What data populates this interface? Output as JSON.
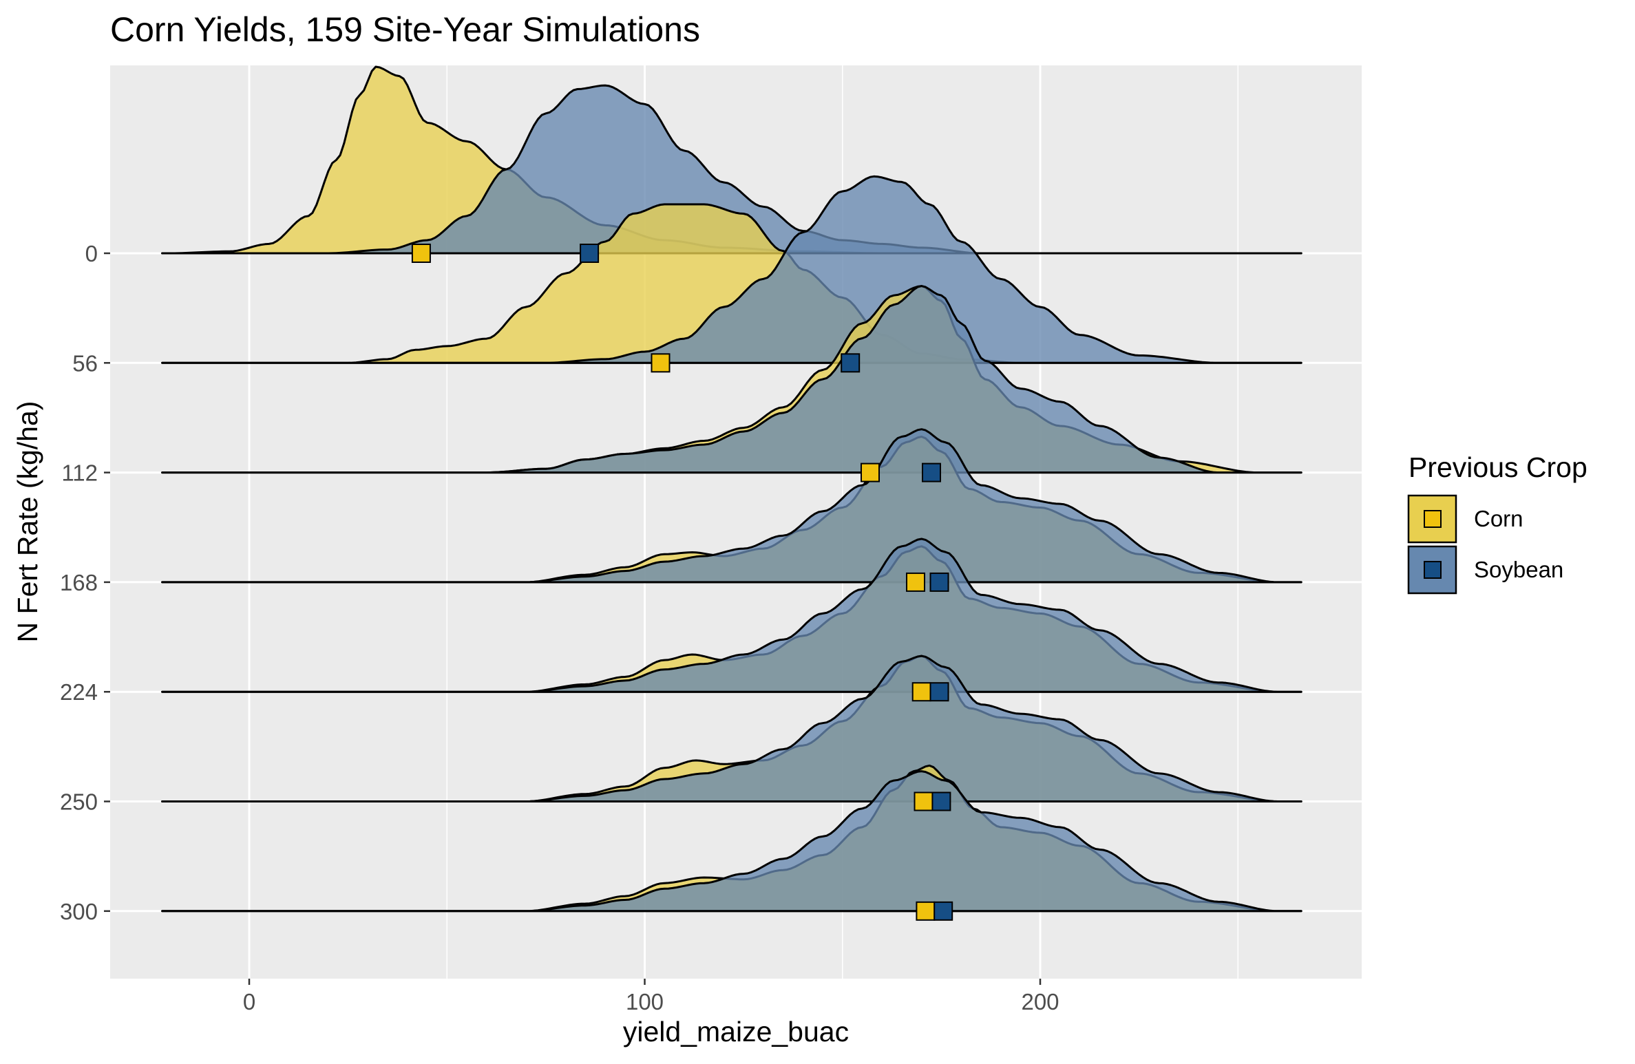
{
  "chart_data": {
    "type": "ridgeline",
    "title": "Corn Yields, 159 Site-Year Simulations",
    "xlabel": "yield_maize_buac",
    "ylabel": "N Fert Rate (kg/ha)",
    "xlim": [
      -35,
      280
    ],
    "x_ticks": [
      0,
      100,
      200
    ],
    "x_tick_labels": [
      "0",
      "100",
      "200"
    ],
    "categories": [
      "0",
      "56",
      "112",
      "168",
      "224",
      "250",
      "300"
    ],
    "legend": {
      "title": "Previous Crop",
      "placement": "right",
      "entries": [
        "Corn",
        "Soybean"
      ]
    },
    "grid": true,
    "series": [
      {
        "name": "Corn",
        "fill": "#e8cf4f",
        "marker": "#f0c20e",
        "medians": [
          43.5,
          104,
          157,
          168.5,
          170,
          170.5,
          171
        ],
        "densities": [
          [
            [
              -20,
              0
            ],
            [
              -5,
              0.01
            ],
            [
              5,
              0.05
            ],
            [
              15,
              0.2
            ],
            [
              22,
              0.5
            ],
            [
              28,
              0.85
            ],
            [
              32,
              1
            ],
            [
              38,
              0.95
            ],
            [
              45,
              0.7
            ],
            [
              55,
              0.6
            ],
            [
              65,
              0.45
            ],
            [
              75,
              0.3
            ],
            [
              90,
              0.15
            ],
            [
              105,
              0.07
            ],
            [
              120,
              0.03
            ],
            [
              140,
              0.01
            ],
            [
              160,
              0
            ]
          ],
          [
            [
              25,
              0
            ],
            [
              35,
              0.02
            ],
            [
              42,
              0.07
            ],
            [
              50,
              0.09
            ],
            [
              60,
              0.13
            ],
            [
              70,
              0.3
            ],
            [
              80,
              0.48
            ],
            [
              90,
              0.65
            ],
            [
              97,
              0.8
            ],
            [
              105,
              0.85
            ],
            [
              115,
              0.85
            ],
            [
              125,
              0.8
            ],
            [
              135,
              0.6
            ],
            [
              140,
              0.5
            ],
            [
              150,
              0.35
            ],
            [
              160,
              0.15
            ],
            [
              170,
              0.05
            ],
            [
              180,
              0.02
            ],
            [
              195,
              0
            ]
          ],
          [
            [
              60,
              0
            ],
            [
              75,
              0.02
            ],
            [
              85,
              0.07
            ],
            [
              95,
              0.1
            ],
            [
              105,
              0.13
            ],
            [
              115,
              0.17
            ],
            [
              125,
              0.24
            ],
            [
              135,
              0.35
            ],
            [
              145,
              0.55
            ],
            [
              155,
              0.8
            ],
            [
              163,
              0.95
            ],
            [
              170,
              1
            ],
            [
              175,
              0.92
            ],
            [
              180,
              0.72
            ],
            [
              186,
              0.5
            ],
            [
              195,
              0.35
            ],
            [
              205,
              0.25
            ],
            [
              220,
              0.15
            ],
            [
              235,
              0.06
            ],
            [
              255,
              0
            ]
          ],
          [
            [
              70,
              0
            ],
            [
              85,
              0.04
            ],
            [
              95,
              0.08
            ],
            [
              105,
              0.15
            ],
            [
              112,
              0.16
            ],
            [
              120,
              0.14
            ],
            [
              130,
              0.18
            ],
            [
              140,
              0.28
            ],
            [
              150,
              0.4
            ],
            [
              160,
              0.62
            ],
            [
              166,
              0.75
            ],
            [
              170,
              0.78
            ],
            [
              175,
              0.7
            ],
            [
              182,
              0.5
            ],
            [
              190,
              0.43
            ],
            [
              200,
              0.4
            ],
            [
              210,
              0.33
            ],
            [
              225,
              0.15
            ],
            [
              240,
              0.05
            ],
            [
              260,
              0
            ]
          ],
          [
            [
              70,
              0
            ],
            [
              85,
              0.04
            ],
            [
              95,
              0.08
            ],
            [
              105,
              0.17
            ],
            [
              112,
              0.2
            ],
            [
              120,
              0.17
            ],
            [
              130,
              0.2
            ],
            [
              140,
              0.3
            ],
            [
              150,
              0.42
            ],
            [
              160,
              0.62
            ],
            [
              166,
              0.75
            ],
            [
              170,
              0.78
            ],
            [
              175,
              0.7
            ],
            [
              182,
              0.5
            ],
            [
              190,
              0.45
            ],
            [
              200,
              0.42
            ],
            [
              210,
              0.35
            ],
            [
              225,
              0.15
            ],
            [
              240,
              0.05
            ],
            [
              260,
              0
            ]
          ],
          [
            [
              70,
              0
            ],
            [
              85,
              0.04
            ],
            [
              95,
              0.08
            ],
            [
              105,
              0.18
            ],
            [
              113,
              0.22
            ],
            [
              120,
              0.2
            ],
            [
              130,
              0.22
            ],
            [
              140,
              0.3
            ],
            [
              150,
              0.43
            ],
            [
              160,
              0.62
            ],
            [
              166,
              0.75
            ],
            [
              170,
              0.78
            ],
            [
              175,
              0.7
            ],
            [
              182,
              0.5
            ],
            [
              190,
              0.45
            ],
            [
              200,
              0.42
            ],
            [
              210,
              0.35
            ],
            [
              225,
              0.15
            ],
            [
              240,
              0.05
            ],
            [
              260,
              0
            ]
          ],
          [
            [
              70,
              0
            ],
            [
              85,
              0.04
            ],
            [
              95,
              0.08
            ],
            [
              105,
              0.15
            ],
            [
              115,
              0.18
            ],
            [
              125,
              0.17
            ],
            [
              135,
              0.22
            ],
            [
              145,
              0.3
            ],
            [
              155,
              0.45
            ],
            [
              163,
              0.65
            ],
            [
              168,
              0.75
            ],
            [
              172,
              0.78
            ],
            [
              177,
              0.7
            ],
            [
              183,
              0.55
            ],
            [
              190,
              0.45
            ],
            [
              200,
              0.42
            ],
            [
              210,
              0.35
            ],
            [
              225,
              0.15
            ],
            [
              240,
              0.05
            ],
            [
              260,
              0
            ]
          ]
        ]
      },
      {
        "name": "Soybean",
        "fill": "#6688af",
        "marker": "#164e85",
        "medians": [
          86,
          152,
          172.5,
          174.5,
          174.5,
          175,
          175.5
        ],
        "densities": [
          [
            [
              20,
              0
            ],
            [
              35,
              0.02
            ],
            [
              45,
              0.07
            ],
            [
              55,
              0.2
            ],
            [
              65,
              0.45
            ],
            [
              75,
              0.75
            ],
            [
              83,
              0.88
            ],
            [
              90,
              0.9
            ],
            [
              100,
              0.8
            ],
            [
              110,
              0.55
            ],
            [
              120,
              0.38
            ],
            [
              130,
              0.25
            ],
            [
              140,
              0.12
            ],
            [
              150,
              0.07
            ],
            [
              160,
              0.05
            ],
            [
              170,
              0.03
            ],
            [
              185,
              0
            ]
          ],
          [
            [
              75,
              0
            ],
            [
              90,
              0.02
            ],
            [
              100,
              0.06
            ],
            [
              110,
              0.13
            ],
            [
              120,
              0.3
            ],
            [
              130,
              0.45
            ],
            [
              140,
              0.7
            ],
            [
              150,
              0.92
            ],
            [
              158,
              1
            ],
            [
              165,
              0.97
            ],
            [
              172,
              0.85
            ],
            [
              180,
              0.65
            ],
            [
              190,
              0.45
            ],
            [
              200,
              0.3
            ],
            [
              210,
              0.15
            ],
            [
              225,
              0.04
            ],
            [
              245,
              0
            ]
          ],
          [
            [
              60,
              0
            ],
            [
              75,
              0.02
            ],
            [
              85,
              0.07
            ],
            [
              95,
              0.1
            ],
            [
              105,
              0.12
            ],
            [
              115,
              0.15
            ],
            [
              125,
              0.22
            ],
            [
              135,
              0.32
            ],
            [
              145,
              0.5
            ],
            [
              155,
              0.72
            ],
            [
              163,
              0.9
            ],
            [
              170,
              1
            ],
            [
              175,
              0.95
            ],
            [
              180,
              0.8
            ],
            [
              186,
              0.6
            ],
            [
              195,
              0.45
            ],
            [
              205,
              0.38
            ],
            [
              215,
              0.25
            ],
            [
              230,
              0.08
            ],
            [
              245,
              0
            ]
          ],
          [
            [
              70,
              0
            ],
            [
              85,
              0.03
            ],
            [
              95,
              0.06
            ],
            [
              105,
              0.11
            ],
            [
              115,
              0.14
            ],
            [
              125,
              0.18
            ],
            [
              135,
              0.25
            ],
            [
              145,
              0.38
            ],
            [
              155,
              0.52
            ],
            [
              165,
              0.78
            ],
            [
              170,
              0.82
            ],
            [
              176,
              0.75
            ],
            [
              185,
              0.52
            ],
            [
              195,
              0.45
            ],
            [
              205,
              0.42
            ],
            [
              215,
              0.33
            ],
            [
              230,
              0.15
            ],
            [
              245,
              0.05
            ],
            [
              260,
              0
            ]
          ],
          [
            [
              70,
              0
            ],
            [
              85,
              0.03
            ],
            [
              95,
              0.06
            ],
            [
              105,
              0.12
            ],
            [
              115,
              0.15
            ],
            [
              125,
              0.2
            ],
            [
              135,
              0.28
            ],
            [
              145,
              0.42
            ],
            [
              155,
              0.55
            ],
            [
              165,
              0.78
            ],
            [
              170,
              0.82
            ],
            [
              176,
              0.75
            ],
            [
              185,
              0.52
            ],
            [
              195,
              0.47
            ],
            [
              205,
              0.44
            ],
            [
              215,
              0.33
            ],
            [
              230,
              0.15
            ],
            [
              245,
              0.05
            ],
            [
              260,
              0
            ]
          ],
          [
            [
              70,
              0
            ],
            [
              85,
              0.03
            ],
            [
              95,
              0.06
            ],
            [
              105,
              0.12
            ],
            [
              115,
              0.15
            ],
            [
              125,
              0.2
            ],
            [
              135,
              0.28
            ],
            [
              145,
              0.42
            ],
            [
              155,
              0.55
            ],
            [
              165,
              0.75
            ],
            [
              170,
              0.78
            ],
            [
              176,
              0.72
            ],
            [
              185,
              0.52
            ],
            [
              195,
              0.47
            ],
            [
              205,
              0.44
            ],
            [
              215,
              0.33
            ],
            [
              230,
              0.15
            ],
            [
              245,
              0.05
            ],
            [
              260,
              0
            ]
          ],
          [
            [
              70,
              0
            ],
            [
              85,
              0.03
            ],
            [
              95,
              0.06
            ],
            [
              105,
              0.12
            ],
            [
              115,
              0.15
            ],
            [
              125,
              0.2
            ],
            [
              135,
              0.28
            ],
            [
              145,
              0.4
            ],
            [
              155,
              0.55
            ],
            [
              163,
              0.7
            ],
            [
              170,
              0.75
            ],
            [
              176,
              0.7
            ],
            [
              185,
              0.53
            ],
            [
              195,
              0.5
            ],
            [
              205,
              0.45
            ],
            [
              215,
              0.33
            ],
            [
              230,
              0.15
            ],
            [
              245,
              0.05
            ],
            [
              260,
              0
            ]
          ]
        ]
      }
    ]
  }
}
